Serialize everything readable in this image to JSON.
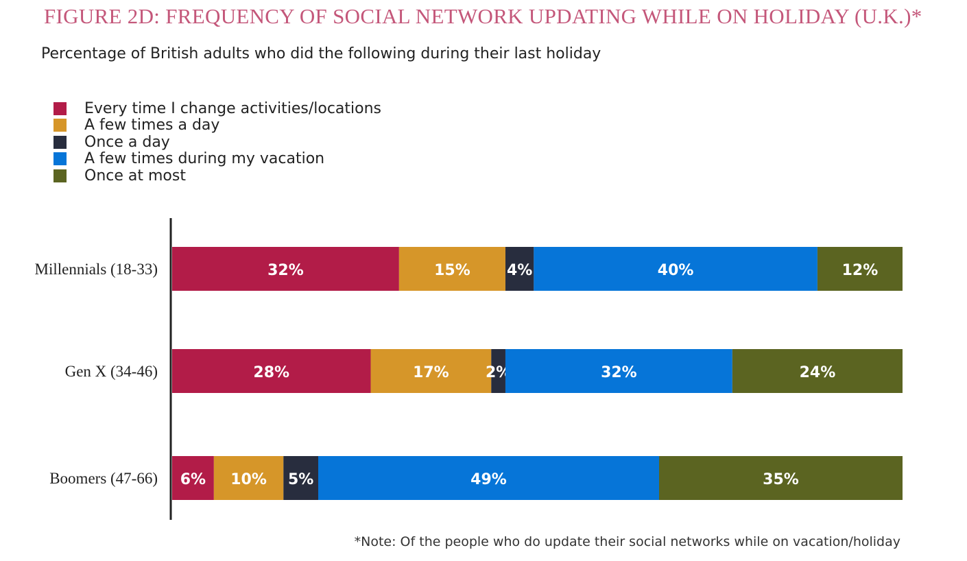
{
  "chart_data": {
    "type": "bar",
    "orientation": "horizontal",
    "stacked": true,
    "title": "FIGURE 2D: FREQUENCY OF SOCIAL NETWORK UPDATING WHILE ON HOLIDAY (U.K.)*",
    "subtitle": "Percentage of British adults who did the following during their last holiday",
    "note": "*Note: Of the people who do update their social networks while on vacation/holiday",
    "categories": [
      "Millennials (18-33)",
      "Gen X (34-46)",
      "Boomers (47-66)"
    ],
    "series": [
      {
        "name": "Every time I change activities/locations",
        "color": "#b21c48",
        "values": [
          32,
          28,
          6
        ]
      },
      {
        "name": "A few times a day",
        "color": "#d69629",
        "values": [
          15,
          17,
          10
        ]
      },
      {
        "name": "Once a day",
        "color": "#282d3e",
        "values": [
          4,
          2,
          5
        ]
      },
      {
        "name": "A few times during my vacation",
        "color": "#0675d8",
        "values": [
          40,
          32,
          49
        ]
      },
      {
        "name": "Once at most",
        "color": "#5b6421",
        "values": [
          12,
          24,
          35
        ]
      }
    ],
    "data_labels": [
      [
        "32%",
        "15%",
        "4%",
        "40%",
        "12%"
      ],
      [
        "28%",
        "17%",
        "2%",
        "32%",
        "24%"
      ],
      [
        "6%",
        "10%",
        "5%",
        "49%",
        "35%"
      ]
    ],
    "legend_position": "top-left",
    "grid": false
  }
}
